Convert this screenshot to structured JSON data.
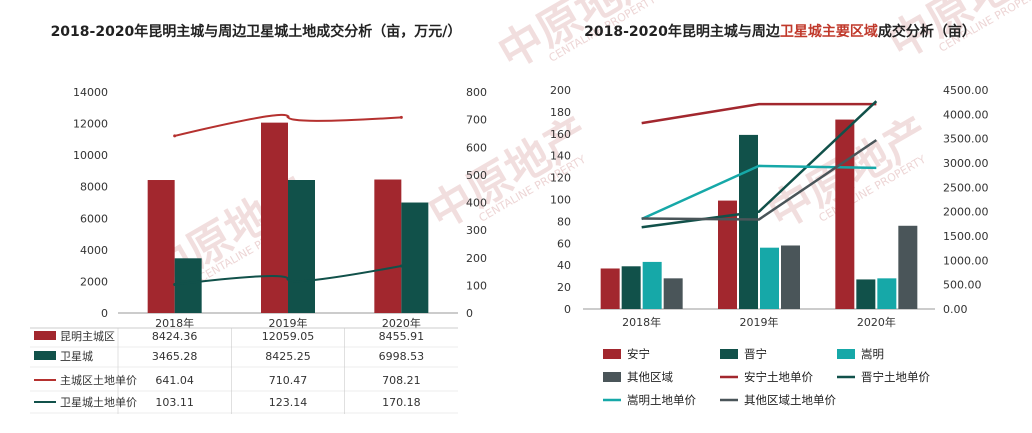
{
  "watermark": {
    "cn": "中原地产",
    "en": "CENTALINE PROPERTY"
  },
  "chart_data": [
    {
      "type": "bar",
      "title": "2018-2020年昆明主城与周边卫星城土地成交分析（亩，万元/）",
      "categories": [
        "2018年",
        "2019年",
        "2020年"
      ],
      "ylim_left": [
        0,
        14000
      ],
      "yticks_left": [
        "0",
        "2000",
        "4000",
        "6000",
        "8000",
        "10000",
        "12000",
        "14000"
      ],
      "ylim_right": [
        0,
        800
      ],
      "yticks_right": [
        "0",
        "100",
        "200",
        "300",
        "400",
        "500",
        "600",
        "700",
        "800"
      ],
      "series": [
        {
          "name": "昆明主城区",
          "kind": "bar",
          "axis": "left",
          "color": "#a2272e",
          "values": [
            8424.36,
            12059.05,
            8455.91
          ],
          "labels": [
            "8424.36",
            "12059.05",
            "8455.91"
          ]
        },
        {
          "name": "卫星城",
          "kind": "bar",
          "axis": "left",
          "color": "#11514a",
          "values": [
            3465.28,
            8425.25,
            6998.53
          ],
          "labels": [
            "3465.28",
            "8425.25",
            "6998.53"
          ]
        },
        {
          "name": "主城区土地单价",
          "kind": "line",
          "axis": "right",
          "color": "#b5312f",
          "values": [
            641.04,
            710.47,
            708.21
          ],
          "labels": [
            "641.04",
            "710.47",
            "708.21"
          ]
        },
        {
          "name": "卫星城土地单价",
          "kind": "line",
          "axis": "right",
          "color": "#11514a",
          "values": [
            103.11,
            123.14,
            170.18
          ],
          "labels": [
            "103.11",
            "123.14",
            "170.18"
          ]
        }
      ]
    },
    {
      "type": "bar",
      "title_parts": [
        "2018-2020年昆明主城与周边",
        "卫星城主要区域",
        "成交分析（亩）"
      ],
      "categories": [
        "2018年",
        "2019年",
        "2020年"
      ],
      "ylim_left": [
        0,
        200
      ],
      "yticks_left": [
        "0",
        "20",
        "40",
        "60",
        "80",
        "100",
        "120",
        "140",
        "160",
        "180",
        "200"
      ],
      "ylim_right": [
        0,
        4500
      ],
      "yticks_right": [
        "0.00",
        "500.00",
        "1000.00",
        "1500.00",
        "2000.00",
        "2500.00",
        "3000.00",
        "3500.00",
        "4000.00",
        "4500.00"
      ],
      "series": [
        {
          "name": "安宁",
          "kind": "bar",
          "axis": "left",
          "color": "#a2272e",
          "values": [
            37,
            99,
            173
          ]
        },
        {
          "name": "晋宁",
          "kind": "bar",
          "axis": "left",
          "color": "#11514a",
          "values": [
            39,
            159,
            27
          ]
        },
        {
          "name": "嵩明",
          "kind": "bar",
          "axis": "left",
          "color": "#16a8a8",
          "values": [
            43,
            56,
            28
          ]
        },
        {
          "name": "其他区域",
          "kind": "bar",
          "axis": "left",
          "color": "#4a5559",
          "values": [
            28,
            58,
            76
          ]
        },
        {
          "name": "安宁土地单价",
          "kind": "line",
          "axis": "right",
          "color": "#a2272e",
          "values": [
            3820,
            4210,
            4210
          ]
        },
        {
          "name": "晋宁土地单价",
          "kind": "line",
          "axis": "right",
          "color": "#11514a",
          "values": [
            1680,
            2000,
            4270
          ]
        },
        {
          "name": "嵩明土地单价",
          "kind": "line",
          "axis": "right",
          "color": "#16a8a8",
          "values": [
            1850,
            2940,
            2900
          ]
        },
        {
          "name": "其他区域土地单价",
          "kind": "line",
          "axis": "right",
          "color": "#4a5559",
          "values": [
            1860,
            1840,
            3470
          ]
        }
      ],
      "legend_placement": "bottom"
    }
  ]
}
